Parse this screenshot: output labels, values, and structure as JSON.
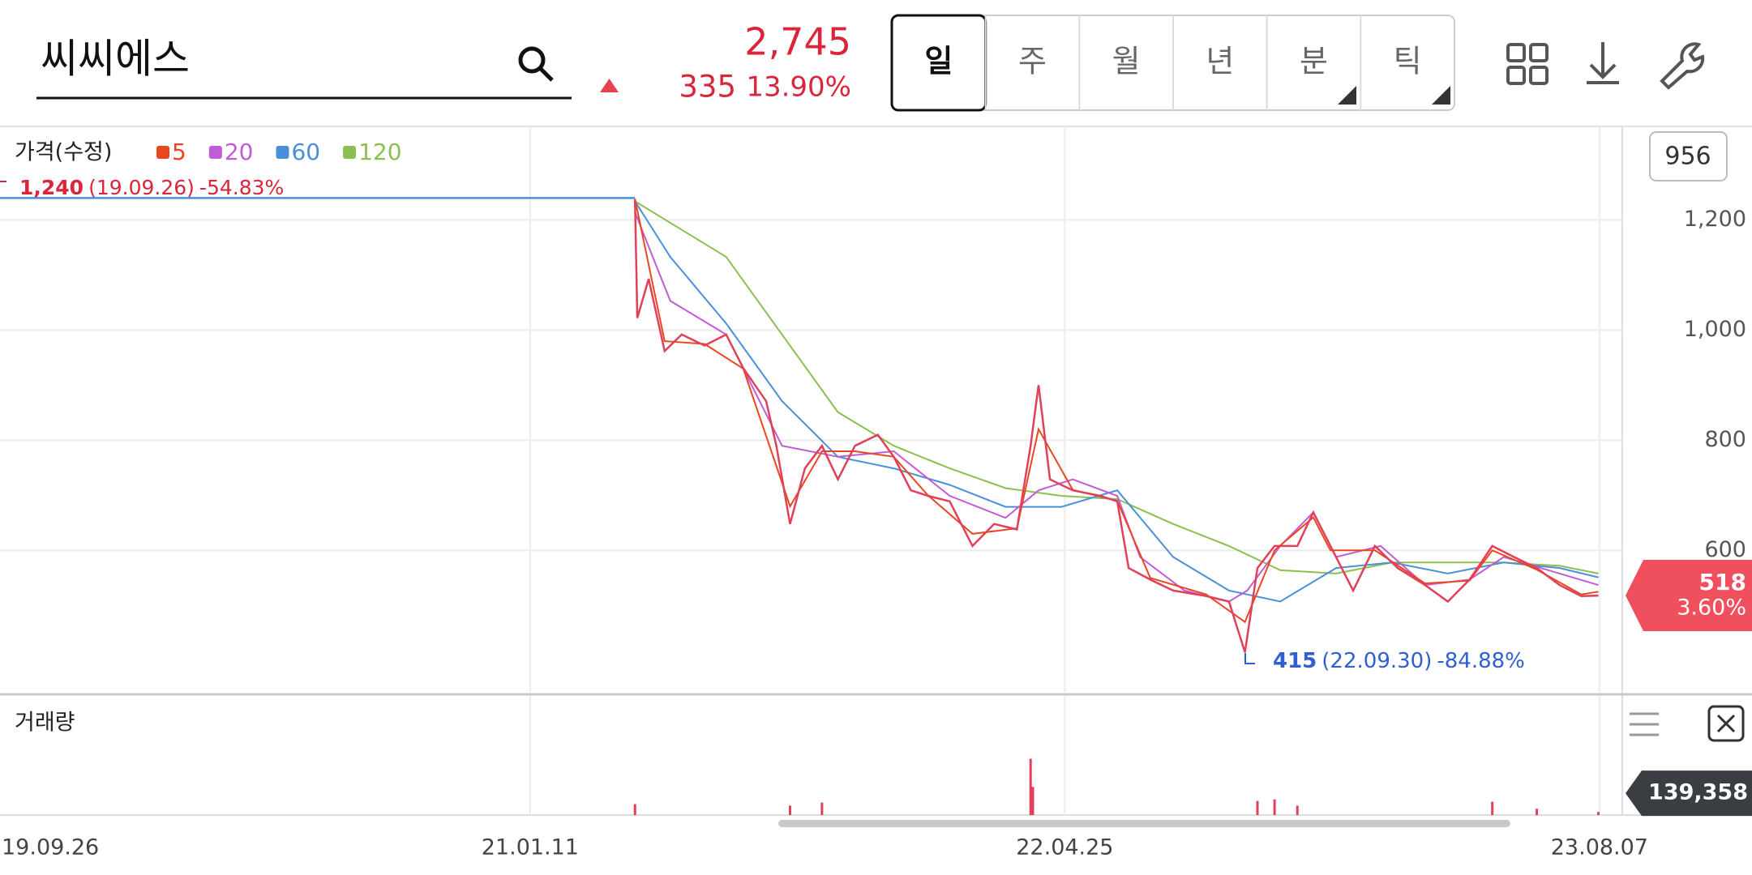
{
  "header": {
    "search": "씨씨에스",
    "price": "2,745",
    "change": "335",
    "change_rate": "13.90%"
  },
  "tabs": [
    "일",
    "주",
    "월",
    "년",
    "분",
    "틱"
  ],
  "selected_tab": 0,
  "chart_data": {
    "type": "line",
    "title": "가격(수정)",
    "volume_title": "거래량",
    "count": 956,
    "xlim": [
      "19.10.04",
      "23.08.27"
    ],
    "xticks": [
      "19.09.26",
      "21.01.11",
      "22.04.25",
      "23.08.07"
    ],
    "ylim": [
      343,
      1370
    ],
    "yticks": [
      600,
      800,
      {
        "value": 1000,
        "label": "1,000"
      },
      {
        "value": 1200,
        "label": "1,200"
      }
    ],
    "grid": true,
    "price": {
      "color": "#e0405a",
      "x": [
        "21.04.13",
        "21.04.15",
        "21.04.25",
        "21.05.09",
        "21.05.24",
        "21.06.13",
        "21.07.02",
        "21.07.17",
        "21.08.06",
        "21.08.15",
        "21.08.27",
        "21.09.09",
        "21.09.24",
        "21.10.08",
        "21.10.23",
        "21.11.12",
        "21.11.26",
        "21.12.11",
        "21.12.26",
        "22.01.14",
        "22.02.03",
        "22.02.22",
        "22.03.14",
        "22.03.26",
        "22.04.02",
        "22.04.12",
        "22.05.02",
        "22.05.26",
        "22.06.10",
        "22.06.20",
        "22.07.09",
        "22.07.29",
        "22.08.27",
        "22.09.16",
        "22.09.30",
        "22.10.11",
        "22.10.26",
        "22.11.15",
        "22.11.29",
        "22.12.14",
        "23.01.03",
        "23.01.22",
        "23.02.11",
        "23.03.07",
        "23.03.27",
        "23.04.15",
        "23.05.05",
        "23.05.24",
        "23.06.13",
        "23.07.03",
        "23.07.22",
        "23.08.06"
      ],
      "values": [
        1238,
        1022,
        1093,
        962,
        992,
        972,
        992,
        931,
        871,
        790,
        648,
        749,
        790,
        729,
        790,
        810,
        770,
        709,
        699,
        689,
        608,
        648,
        638,
        790,
        900,
        729,
        709,
        699,
        689,
        568,
        547,
        527,
        517,
        507,
        415,
        568,
        608,
        608,
        669,
        608,
        527,
        608,
        568,
        537,
        507,
        547,
        608,
        588,
        568,
        537,
        517,
        518
      ]
    },
    "series": [
      {
        "name": "5",
        "color": "#e8471f",
        "x": [
          "21.04.13",
          "21.05.09",
          "21.06.13",
          "21.07.17",
          "21.08.27",
          "21.09.24",
          "21.10.23",
          "21.11.26",
          "21.12.26",
          "22.02.03",
          "22.03.14",
          "22.04.02",
          "22.05.02",
          "22.06.10",
          "22.07.09",
          "22.08.27",
          "22.09.30",
          "22.10.26",
          "22.11.29",
          "22.12.14",
          "23.01.22",
          "23.03.07",
          "23.04.15",
          "23.05.05",
          "23.06.13",
          "23.07.22",
          "23.08.06"
        ],
        "values": [
          1238,
          980,
          975,
          930,
          680,
          780,
          780,
          770,
          700,
          630,
          640,
          820,
          710,
          690,
          550,
          520,
          470,
          600,
          660,
          600,
          600,
          540,
          545,
          600,
          565,
          520,
          525
        ]
      },
      {
        "name": "20",
        "color": "#c25bd6",
        "x": [
          "21.04.13",
          "21.05.14",
          "21.07.02",
          "21.08.20",
          "21.10.08",
          "21.11.26",
          "22.01.14",
          "22.03.04",
          "22.04.02",
          "22.05.02",
          "22.06.10",
          "22.06.30",
          "22.08.08",
          "22.09.16",
          "22.10.02",
          "22.10.31",
          "22.11.29",
          "22.12.19",
          "23.01.27",
          "23.03.07",
          "23.04.15",
          "23.05.15",
          "23.07.03",
          "23.08.06"
        ],
        "values": [
          1214,
          1053,
          992,
          790,
          770,
          780,
          699,
          659,
          709,
          729,
          699,
          588,
          527,
          507,
          527,
          608,
          669,
          588,
          608,
          537,
          547,
          588,
          558,
          537
        ]
      },
      {
        "name": "60",
        "color": "#4a90d9",
        "x": [
          "21.04.13",
          "21.05.14",
          "21.07.02",
          "21.08.20",
          "21.10.08",
          "21.11.26",
          "22.01.14",
          "22.03.04",
          "22.04.22",
          "22.06.10",
          "22.07.29",
          "22.09.16",
          "22.10.31",
          "22.12.19",
          "23.02.06",
          "23.03.27",
          "23.05.15",
          "23.07.03",
          "23.08.06"
        ],
        "values": [
          1234,
          1133,
          1012,
          871,
          770,
          749,
          719,
          679,
          679,
          709,
          588,
          527,
          507,
          568,
          578,
          558,
          578,
          568,
          551
        ]
      },
      {
        "name": "120",
        "color": "#8cbf4f",
        "x": [
          "21.04.13",
          "21.07.02",
          "21.08.20",
          "21.10.08",
          "21.11.26",
          "22.01.14",
          "22.03.04",
          "22.04.22",
          "22.06.10",
          "22.07.29",
          "22.09.16",
          "22.10.31",
          "22.12.19",
          "23.02.06",
          "23.03.27",
          "23.05.15",
          "23.07.03",
          "23.08.06"
        ],
        "values": [
          1234,
          1133,
          992,
          851,
          790,
          749,
          713,
          699,
          693,
          648,
          608,
          564,
          558,
          578,
          578,
          578,
          572,
          558
        ]
      }
    ],
    "high": {
      "value": 1240,
      "label": "1,240",
      "date_label": "(19.09.26)",
      "change": "-54.83%"
    },
    "low": {
      "value": 415,
      "date_label": "(22.09.30)",
      "change": "-84.88%"
    },
    "last_price": {
      "value": 518,
      "change": "3.60%"
    },
    "volume": {
      "color": "#e0405a",
      "vlim": [
        0,
        700000
      ],
      "x": [
        "21.04.13",
        "21.08.27",
        "21.09.24",
        "22.03.26",
        "22.03.28",
        "22.10.11",
        "22.10.26",
        "22.11.15",
        "23.05.05",
        "23.06.13",
        "23.08.06"
      ],
      "values": [
        70000,
        60000,
        80000,
        360000,
        180000,
        90000,
        100000,
        60000,
        85000,
        40000,
        20000
      ]
    },
    "last_volume": {
      "value": 139358,
      "label": "139,358"
    }
  }
}
